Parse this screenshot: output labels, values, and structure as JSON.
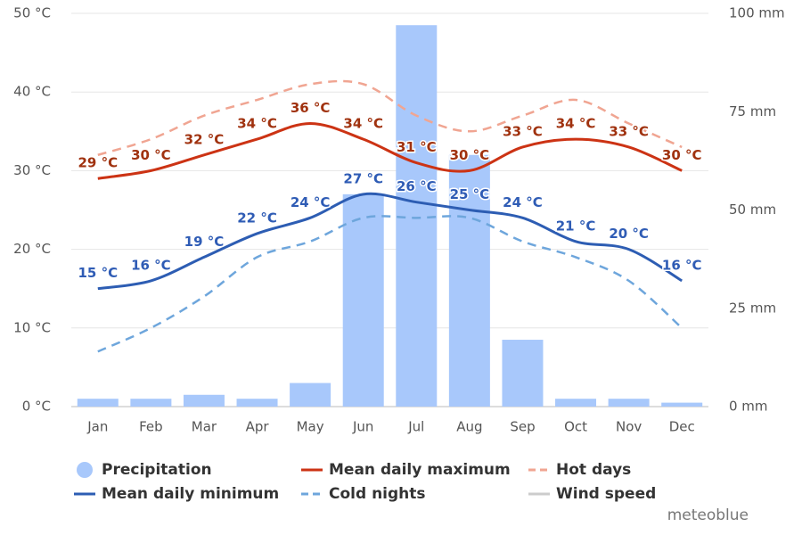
{
  "chart_data": {
    "type": "combo",
    "categories": [
      "Jan",
      "Feb",
      "Mar",
      "Apr",
      "May",
      "Jun",
      "Jul",
      "Aug",
      "Sep",
      "Oct",
      "Nov",
      "Dec"
    ],
    "ylim": [
      0,
      50
    ],
    "yticks": [
      {
        "value": 0,
        "label": "0 °C"
      },
      {
        "value": 10,
        "label": "10 °C"
      },
      {
        "value": 20,
        "label": "20 °C"
      },
      {
        "value": 30,
        "label": "30 °C"
      },
      {
        "value": 40,
        "label": "40 °C"
      },
      {
        "value": 50,
        "label": "50 °C"
      }
    ],
    "y2lim": [
      0,
      100
    ],
    "y2ticks": [
      {
        "value": 0,
        "label": "0 mm"
      },
      {
        "value": 25,
        "label": "25 mm"
      },
      {
        "value": 50,
        "label": "50 mm"
      },
      {
        "value": 75,
        "label": "75 mm"
      },
      {
        "value": 100,
        "label": "100 mm"
      }
    ],
    "grid": true,
    "series": [
      {
        "name": "Precipitation",
        "type": "bar",
        "axis": "y2",
        "color": "#a8c8fb",
        "values": [
          2,
          2,
          3,
          2,
          6,
          54,
          97,
          64,
          17,
          2,
          2,
          1
        ]
      },
      {
        "name": "Mean daily maximum",
        "type": "line",
        "color": "#cc3314",
        "label_color": "#a0320f",
        "values": [
          29,
          30,
          32,
          34,
          36,
          34,
          31,
          30,
          33,
          34,
          33,
          30
        ],
        "value_labels": [
          "29 °C",
          "30 °C",
          "32 °C",
          "34 °C",
          "36 °C",
          "34 °C",
          "31 °C",
          "30 °C",
          "33 °C",
          "34 °C",
          "33 °C",
          "30 °C"
        ]
      },
      {
        "name": "Hot days",
        "type": "line",
        "dashed": true,
        "color": "#f0a592",
        "values": [
          32,
          34,
          37,
          39,
          41,
          41,
          37,
          35,
          37,
          39,
          36,
          33
        ]
      },
      {
        "name": "Mean daily minimum",
        "type": "line",
        "color": "#2d5db3",
        "label_color": "#2f5cb5",
        "values": [
          15,
          16,
          19,
          22,
          24,
          27,
          26,
          25,
          24,
          21,
          20,
          16
        ],
        "value_labels": [
          "15 °C",
          "16 °C",
          "19 °C",
          "22 °C",
          "24 °C",
          "27 °C",
          "26 °C",
          "25 °C",
          "24 °C",
          "21 °C",
          "20 °C",
          "16 °C"
        ]
      },
      {
        "name": "Cold nights",
        "type": "line",
        "dashed": true,
        "color": "#6ea6dc",
        "values": [
          7,
          10,
          14,
          19,
          21,
          24,
          24,
          24,
          21,
          19,
          16,
          10
        ]
      },
      {
        "name": "Wind speed",
        "type": "line",
        "visible": false,
        "color": "#cccccc"
      }
    ],
    "watermark": "meteoblue"
  }
}
